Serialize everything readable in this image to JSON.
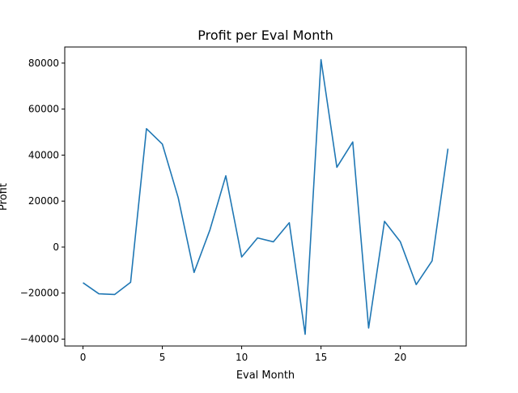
{
  "chart_data": {
    "type": "line",
    "title": "Profit per Eval Month",
    "xlabel": "Eval Month",
    "ylabel": "Profit",
    "xlim": [
      -1.15,
      24.15
    ],
    "ylim": [
      -43000,
      87000
    ],
    "xticks": [
      0,
      5,
      10,
      15,
      20
    ],
    "yticks": [
      -40000,
      -20000,
      0,
      20000,
      40000,
      60000,
      80000
    ],
    "grid": false,
    "series": [
      {
        "color": "#1f77b4",
        "x": [
          0,
          1,
          2,
          3,
          4,
          5,
          6,
          7,
          8,
          9,
          10,
          11,
          12,
          13,
          14,
          15,
          16,
          17,
          18,
          19,
          20,
          21,
          22,
          23
        ],
        "y": [
          -15500,
          -20300,
          -20600,
          -15300,
          51500,
          44800,
          21500,
          -11000,
          7500,
          31000,
          -4300,
          4000,
          2300,
          10600,
          -37900,
          81500,
          34700,
          45700,
          -35200,
          11200,
          2300,
          -16300,
          -6000,
          42800
        ]
      }
    ]
  }
}
